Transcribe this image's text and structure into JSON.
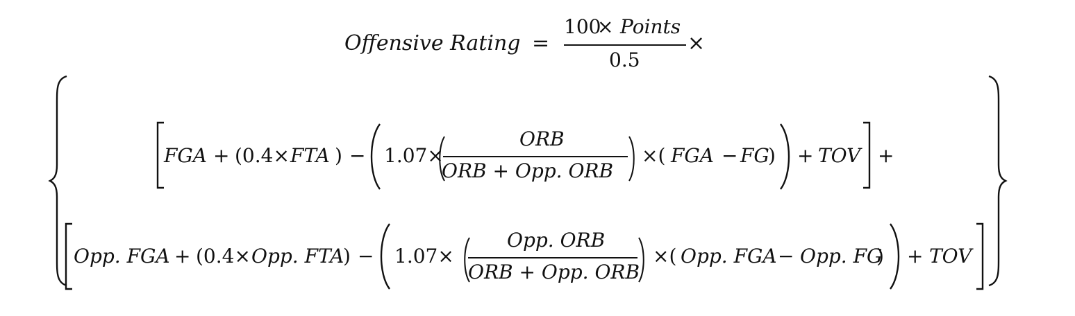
{
  "equation": {
    "lhs": "Offensive Rating",
    "eq": "=",
    "top_num_100": "100",
    "top_num_times": "×",
    "top_num_var": "Points",
    "top_den": "0.5",
    "top_times": "×",
    "line1": {
      "fga": "FGA",
      "plus1": "+",
      "open1": "(0.4×",
      "fta": "FTA",
      "close1": ")",
      "minus1": "−",
      "coef": "1.07×",
      "frac_num": "ORB",
      "frac_den": "ORB + Opp. ORB",
      "times2": "×(",
      "fga2": "FGA",
      "minus2": "−",
      "fg": "FG",
      "close2": ")",
      "plus2": "+",
      "tov": "TOV",
      "plus3": "+"
    },
    "line2": {
      "opp_fga": "Opp. FGA",
      "plus1": "+",
      "open1": "(0.4×",
      "opp_fta": "Opp. FTA",
      "close1": ")",
      "minus1": "−",
      "coef": "1.07×",
      "frac_num": "Opp. ORB",
      "frac_den": "ORB + Opp. ORB",
      "times2": "×(",
      "opp_fga2": "Opp. FGA",
      "minus2": "−",
      "opp_fg": "Opp. FG",
      "close2": ")",
      "plus2": "+",
      "tov": "TOV"
    }
  }
}
